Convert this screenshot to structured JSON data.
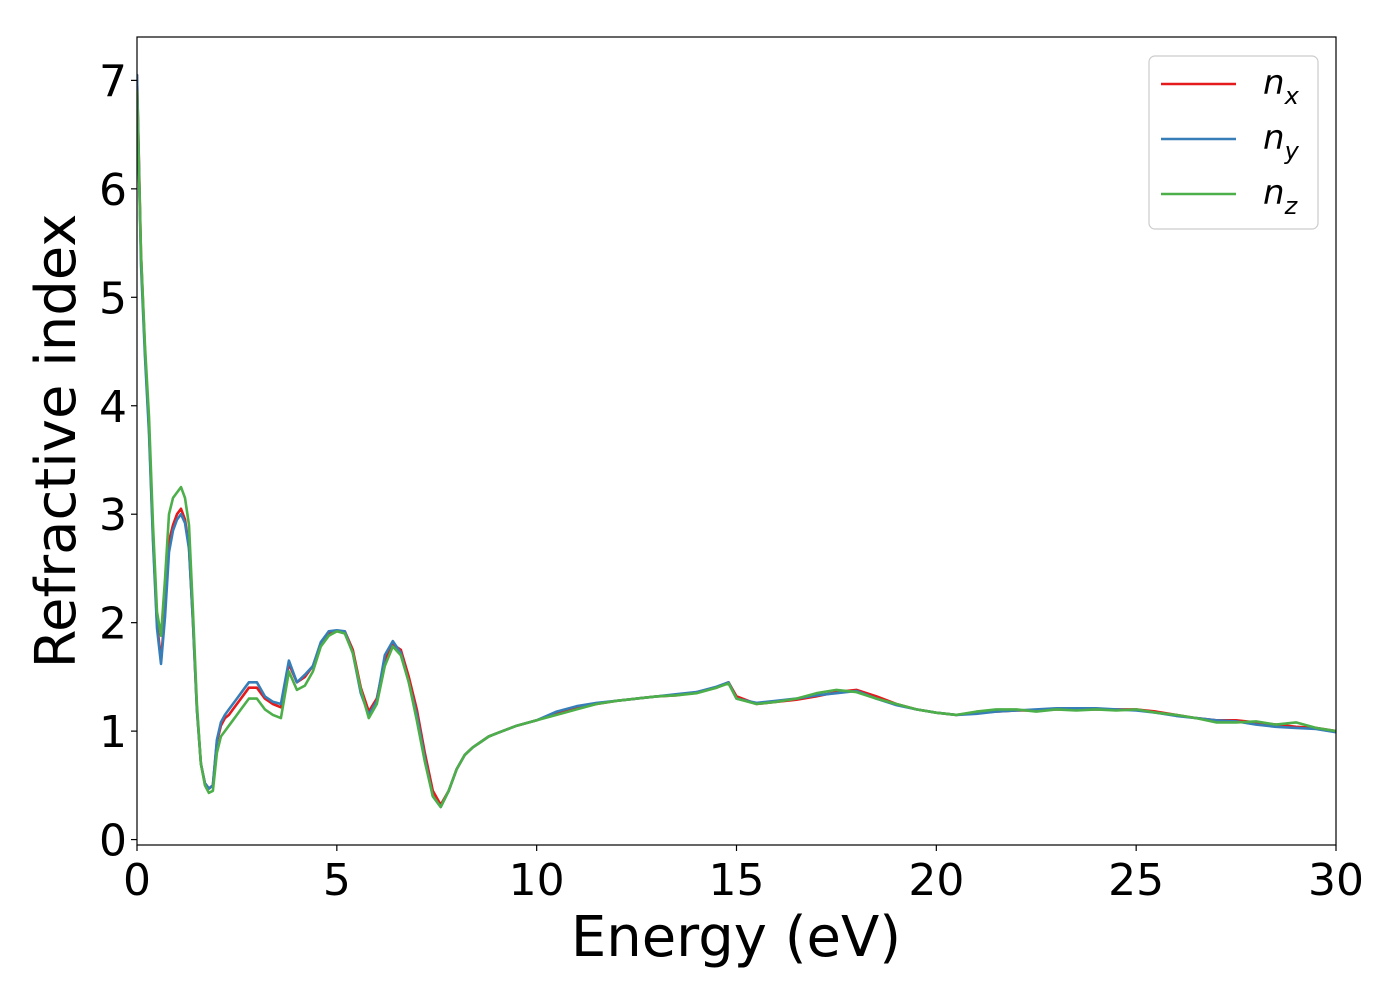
{
  "chart_data": {
    "type": "line",
    "xlabel": "Energy (eV)",
    "ylabel": "Refractive index",
    "xlim": [
      0,
      30
    ],
    "ylim": [
      -0.05,
      7.4
    ],
    "xticks": [
      "0",
      "5",
      "10",
      "15",
      "20",
      "25",
      "30"
    ],
    "yticks": [
      "0",
      "1",
      "2",
      "3",
      "4",
      "5",
      "6",
      "7"
    ],
    "grid": false,
    "legend_position": "top-right",
    "legend": [
      {
        "base": "n",
        "sub": "x",
        "color": "#e41a1c"
      },
      {
        "base": "n",
        "sub": "y",
        "color": "#377eb8"
      },
      {
        "base": "n",
        "sub": "z",
        "color": "#4daf4a"
      }
    ],
    "series": [
      {
        "name": "n_x",
        "color": "#e41a1c",
        "x": [
          0,
          0.1,
          0.2,
          0.3,
          0.4,
          0.5,
          0.6,
          0.7,
          0.8,
          0.9,
          1.0,
          1.1,
          1.2,
          1.3,
          1.4,
          1.5,
          1.6,
          1.7,
          1.8,
          1.9,
          2.0,
          2.1,
          2.2,
          2.3,
          2.4,
          2.5,
          2.6,
          2.7,
          2.8,
          3.0,
          3.2,
          3.4,
          3.6,
          3.8,
          4.0,
          4.2,
          4.4,
          4.6,
          4.8,
          5.0,
          5.2,
          5.4,
          5.6,
          5.8,
          6.0,
          6.2,
          6.4,
          6.6,
          6.8,
          7.0,
          7.2,
          7.4,
          7.6,
          7.8,
          8.0,
          8.2,
          8.4,
          8.6,
          8.8,
          9.0,
          9.5,
          10.0,
          10.5,
          11.0,
          11.5,
          12.0,
          12.5,
          13.0,
          13.5,
          14.0,
          14.5,
          14.8,
          15.0,
          15.5,
          16.0,
          16.5,
          17.0,
          17.5,
          18.0,
          18.5,
          19.0,
          19.5,
          20.0,
          20.5,
          21.0,
          21.5,
          22.0,
          22.5,
          23.0,
          23.5,
          24.0,
          24.5,
          25.0,
          25.5,
          26.0,
          26.5,
          27.0,
          27.5,
          28.0,
          28.5,
          29.0,
          29.5,
          30.0
        ],
        "values": [
          7.05,
          5.4,
          4.5,
          3.8,
          2.8,
          2.0,
          1.65,
          2.1,
          2.75,
          2.9,
          3.0,
          3.05,
          2.95,
          2.7,
          2.0,
          1.2,
          0.7,
          0.52,
          0.47,
          0.5,
          0.9,
          1.05,
          1.12,
          1.15,
          1.2,
          1.25,
          1.3,
          1.35,
          1.4,
          1.4,
          1.3,
          1.25,
          1.22,
          1.62,
          1.45,
          1.5,
          1.6,
          1.8,
          1.9,
          1.92,
          1.92,
          1.75,
          1.4,
          1.18,
          1.3,
          1.65,
          1.8,
          1.75,
          1.5,
          1.2,
          0.8,
          0.45,
          0.32,
          0.45,
          0.65,
          0.78,
          0.85,
          0.9,
          0.95,
          0.98,
          1.05,
          1.1,
          1.17,
          1.22,
          1.25,
          1.28,
          1.3,
          1.32,
          1.33,
          1.36,
          1.4,
          1.45,
          1.32,
          1.25,
          1.27,
          1.29,
          1.32,
          1.36,
          1.38,
          1.32,
          1.25,
          1.2,
          1.17,
          1.15,
          1.17,
          1.18,
          1.19,
          1.19,
          1.2,
          1.2,
          1.2,
          1.2,
          1.2,
          1.18,
          1.15,
          1.12,
          1.1,
          1.1,
          1.08,
          1.06,
          1.04,
          1.03,
          1.0
        ]
      },
      {
        "name": "n_y",
        "color": "#377eb8",
        "x": [
          0,
          0.1,
          0.2,
          0.3,
          0.4,
          0.5,
          0.6,
          0.7,
          0.8,
          0.9,
          1.0,
          1.1,
          1.2,
          1.3,
          1.4,
          1.5,
          1.6,
          1.7,
          1.8,
          1.9,
          2.0,
          2.1,
          2.2,
          2.3,
          2.4,
          2.5,
          2.6,
          2.7,
          2.8,
          3.0,
          3.2,
          3.4,
          3.6,
          3.8,
          4.0,
          4.2,
          4.4,
          4.6,
          4.8,
          5.0,
          5.2,
          5.4,
          5.6,
          5.8,
          6.0,
          6.2,
          6.4,
          6.6,
          6.8,
          7.0,
          7.2,
          7.4,
          7.6,
          7.8,
          8.0,
          8.2,
          8.4,
          8.6,
          8.8,
          9.0,
          9.5,
          10.0,
          10.5,
          11.0,
          11.5,
          12.0,
          12.5,
          13.0,
          13.5,
          14.0,
          14.5,
          14.8,
          15.0,
          15.5,
          16.0,
          16.5,
          17.0,
          17.5,
          18.0,
          18.5,
          19.0,
          19.5,
          20.0,
          20.5,
          21.0,
          21.5,
          22.0,
          22.5,
          23.0,
          23.5,
          24.0,
          24.5,
          25.0,
          25.5,
          26.0,
          26.5,
          27.0,
          27.5,
          28.0,
          28.5,
          29.0,
          29.5,
          30.0
        ],
        "values": [
          7.05,
          5.3,
          4.45,
          3.75,
          2.75,
          1.95,
          1.62,
          2.05,
          2.65,
          2.85,
          2.95,
          3.0,
          2.92,
          2.68,
          2.0,
          1.2,
          0.7,
          0.52,
          0.47,
          0.5,
          0.92,
          1.08,
          1.15,
          1.2,
          1.25,
          1.3,
          1.35,
          1.4,
          1.45,
          1.45,
          1.32,
          1.27,
          1.25,
          1.65,
          1.45,
          1.52,
          1.6,
          1.82,
          1.92,
          1.93,
          1.92,
          1.72,
          1.35,
          1.15,
          1.28,
          1.7,
          1.83,
          1.72,
          1.45,
          1.15,
          0.75,
          0.4,
          0.3,
          0.45,
          0.65,
          0.78,
          0.85,
          0.9,
          0.95,
          0.98,
          1.05,
          1.1,
          1.18,
          1.23,
          1.26,
          1.28,
          1.3,
          1.32,
          1.34,
          1.36,
          1.41,
          1.45,
          1.3,
          1.26,
          1.28,
          1.3,
          1.33,
          1.35,
          1.37,
          1.3,
          1.24,
          1.2,
          1.17,
          1.15,
          1.16,
          1.18,
          1.19,
          1.2,
          1.21,
          1.21,
          1.21,
          1.2,
          1.19,
          1.17,
          1.14,
          1.12,
          1.1,
          1.09,
          1.06,
          1.04,
          1.03,
          1.02,
          0.99
        ]
      },
      {
        "name": "n_z",
        "color": "#4daf4a",
        "x": [
          0,
          0.1,
          0.2,
          0.3,
          0.4,
          0.5,
          0.6,
          0.7,
          0.8,
          0.9,
          1.0,
          1.1,
          1.2,
          1.3,
          1.4,
          1.5,
          1.6,
          1.7,
          1.8,
          1.9,
          2.0,
          2.1,
          2.2,
          2.3,
          2.4,
          2.5,
          2.6,
          2.7,
          2.8,
          3.0,
          3.2,
          3.4,
          3.6,
          3.8,
          4.0,
          4.2,
          4.4,
          4.6,
          4.8,
          5.0,
          5.2,
          5.4,
          5.6,
          5.8,
          6.0,
          6.2,
          6.4,
          6.6,
          6.8,
          7.0,
          7.2,
          7.4,
          7.6,
          7.8,
          8.0,
          8.2,
          8.4,
          8.6,
          8.8,
          9.0,
          9.5,
          10.0,
          10.5,
          11.0,
          11.5,
          12.0,
          12.5,
          13.0,
          13.5,
          14.0,
          14.5,
          14.8,
          15.0,
          15.5,
          16.0,
          16.5,
          17.0,
          17.5,
          18.0,
          18.5,
          19.0,
          19.5,
          20.0,
          20.5,
          21.0,
          21.5,
          22.0,
          22.5,
          23.0,
          23.5,
          24.0,
          24.5,
          25.0,
          25.5,
          26.0,
          26.5,
          27.0,
          27.5,
          28.0,
          28.5,
          29.0,
          29.5,
          30.0
        ],
        "values": [
          6.9,
          5.4,
          4.55,
          3.9,
          2.9,
          2.1,
          1.88,
          2.4,
          3.0,
          3.15,
          3.2,
          3.25,
          3.15,
          2.9,
          2.1,
          1.25,
          0.7,
          0.5,
          0.43,
          0.45,
          0.8,
          0.95,
          1.0,
          1.05,
          1.1,
          1.15,
          1.2,
          1.25,
          1.3,
          1.3,
          1.2,
          1.15,
          1.12,
          1.55,
          1.38,
          1.42,
          1.55,
          1.78,
          1.88,
          1.92,
          1.9,
          1.72,
          1.38,
          1.12,
          1.25,
          1.6,
          1.78,
          1.7,
          1.45,
          1.1,
          0.72,
          0.4,
          0.3,
          0.45,
          0.65,
          0.78,
          0.85,
          0.9,
          0.95,
          0.98,
          1.05,
          1.1,
          1.15,
          1.2,
          1.25,
          1.28,
          1.3,
          1.32,
          1.33,
          1.35,
          1.4,
          1.44,
          1.3,
          1.25,
          1.27,
          1.3,
          1.35,
          1.38,
          1.36,
          1.3,
          1.25,
          1.2,
          1.17,
          1.15,
          1.18,
          1.2,
          1.2,
          1.18,
          1.2,
          1.19,
          1.2,
          1.19,
          1.2,
          1.17,
          1.15,
          1.12,
          1.08,
          1.08,
          1.09,
          1.06,
          1.08,
          1.03,
          1.0
        ]
      }
    ]
  }
}
